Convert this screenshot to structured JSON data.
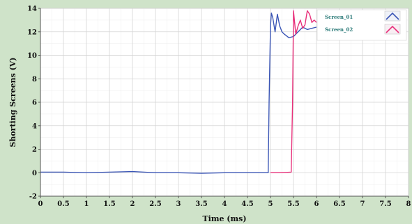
{
  "chart_data": {
    "type": "line",
    "title": "",
    "xlabel": "Time (ms)",
    "ylabel": "Shorting Screens (V)",
    "xlim": [
      0,
      8
    ],
    "ylim": [
      -2,
      14
    ],
    "xticks": [
      "0",
      "0.5",
      "1",
      "1.5",
      "2",
      "2.5",
      "3",
      "3.5",
      "4",
      "4.5",
      "5",
      "5.5",
      "6",
      "6.5",
      "7",
      "7.5",
      "8"
    ],
    "yticks": [
      "-2",
      "0",
      "2",
      "4",
      "6",
      "8",
      "10",
      "12",
      "14"
    ],
    "grid": true,
    "legend_position": "top-right",
    "series": [
      {
        "name": "Screen_01",
        "color": "#3a55b5",
        "x": [
          0,
          0.5,
          1,
          1.5,
          2,
          2.5,
          3,
          3.5,
          4,
          4.5,
          4.95,
          4.97,
          5.0,
          5.02,
          5.05,
          5.1,
          5.15,
          5.2,
          5.25,
          5.3,
          5.4,
          5.5,
          5.6,
          5.7,
          5.8,
          5.9,
          6.0
        ],
        "y": [
          0.05,
          0.05,
          0.0,
          0.05,
          0.1,
          0.0,
          0.0,
          -0.05,
          0.0,
          0.0,
          0.0,
          6.0,
          12.5,
          13.6,
          13.2,
          12.0,
          13.5,
          12.5,
          12.0,
          11.8,
          11.5,
          11.6,
          12.0,
          12.4,
          12.2,
          12.3,
          12.4
        ]
      },
      {
        "name": "Screen_02",
        "color": "#e8307a",
        "x": [
          5.0,
          5.2,
          5.45,
          5.48,
          5.5,
          5.52,
          5.55,
          5.6,
          5.65,
          5.7,
          5.75,
          5.8,
          5.85,
          5.9,
          5.95,
          6.0
        ],
        "y": [
          0.0,
          0.0,
          0.05,
          6.0,
          13.8,
          13.0,
          11.8,
          12.5,
          13.0,
          12.3,
          12.6,
          13.8,
          13.5,
          12.8,
          13.0,
          12.8
        ]
      }
    ]
  }
}
